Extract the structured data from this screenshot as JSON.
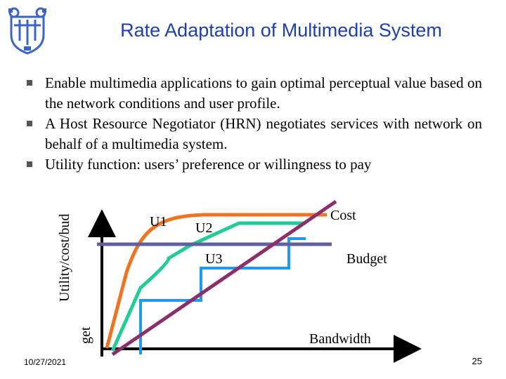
{
  "slide": {
    "title": "Rate Adaptation of Multimedia System",
    "bullets": [
      "Enable multimedia applications to gain optimal perceptual value based on the network conditions and user profile.",
      "A Host Resource Negotiator (HRN) negotiates services with network on behalf of a multimedia system.",
      "Utility function: users’ preference or willingness to pay"
    ],
    "date": "10/27/2021",
    "page": "25"
  },
  "diagram": {
    "y_axis_label": "Utility/cost/bud",
    "y_axis_label_cont": "get",
    "x_axis_label": "Bandwidth",
    "curves": {
      "u1": "U1",
      "u2": "U2",
      "u3": "U3"
    },
    "lines": {
      "cost": "Cost",
      "budget": "Budget"
    }
  },
  "colors": {
    "title": "#1f3fb0",
    "u1_curve": "#ee7420",
    "u2_curve": "#22cc99",
    "u3_curve": "#1a9cf0",
    "budget_line": "#6060a0",
    "cost_line": "#8b2e6c",
    "logo": "#3c64c8"
  },
  "icons": {
    "logo": "university-crest-logo",
    "bullet": "square-bullet"
  }
}
